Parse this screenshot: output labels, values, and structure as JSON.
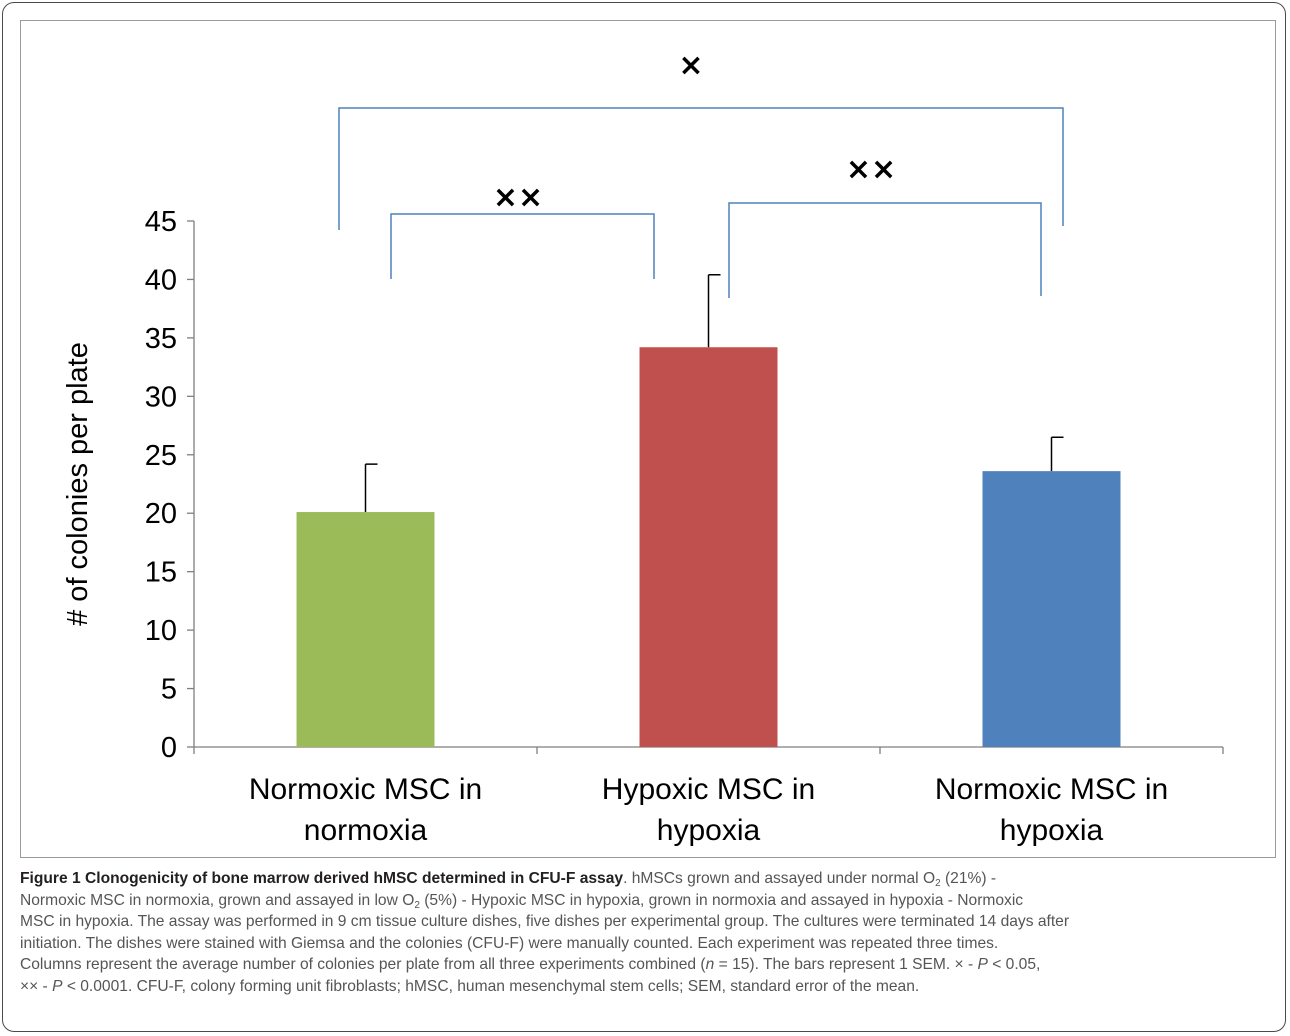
{
  "chart_data": {
    "type": "bar",
    "ylabel": "# of colonies per plate",
    "xlabel": "",
    "ylim": [
      0,
      45
    ],
    "yticks": [
      0,
      5,
      10,
      15,
      20,
      25,
      30,
      35,
      40,
      45
    ],
    "grid": false,
    "categories": [
      "Normoxic MSC in normoxia",
      "Hypoxic MSC in hypoxia",
      "Normoxic MSC in hypoxia"
    ],
    "category_lines": [
      [
        "Normoxic MSC in",
        "normoxia"
      ],
      [
        "Hypoxic MSC in",
        "hypoxia"
      ],
      [
        "Normoxic MSC in",
        "hypoxia"
      ]
    ],
    "values": [
      20.1,
      34.2,
      23.6
    ],
    "errors": [
      4.1,
      6.2,
      2.9
    ],
    "colors": [
      "#9bbb59",
      "#c0504d",
      "#4f81bd"
    ],
    "significance": [
      {
        "from": 0,
        "to": 1,
        "label": "××"
      },
      {
        "from": 1,
        "to": 2,
        "label": "××"
      },
      {
        "from": 0,
        "to": 2,
        "label": "×"
      }
    ],
    "bracket_color": "#4f81bd"
  },
  "caption": {
    "lead": "Figure 1 Clonogenicity of bone marrow derived hMSC determined in CFU-F assay",
    "l1_a": ". hMSCs grown and assayed under normal O",
    "l1_sub": "2",
    "l1_b": " (21%) -",
    "l2_a": "Normoxic MSC in normoxia, grown and assayed in low O",
    "l2_sub": "2",
    "l2_b": " (5%) - Hypoxic MSC in hypoxia, grown in normoxia and assayed in hypoxia - Normoxic",
    "l3": "MSC in hypoxia. The assay was performed in 9 cm tissue culture dishes, five dishes per experimental group. The cultures were terminated 14 days after",
    "l4": "initiation. The dishes were stained with Giemsa and the colonies (CFU-F) were manually counted. Each experiment was repeated three times.",
    "l5_a": "Columns represent the average number of colonies per plate from all three experiments combined (",
    "l5_n": "n",
    "l5_b": " = 15). The bars represent 1 SEM. × - ",
    "l5_p": "P",
    "l5_c": " < 0.05,",
    "l6_a": "×× - ",
    "l6_p": "P",
    "l6_b": " < 0.0001. CFU-F, colony forming unit fibroblasts; hMSC, human mesenchymal stem cells; SEM, standard error of the mean."
  }
}
